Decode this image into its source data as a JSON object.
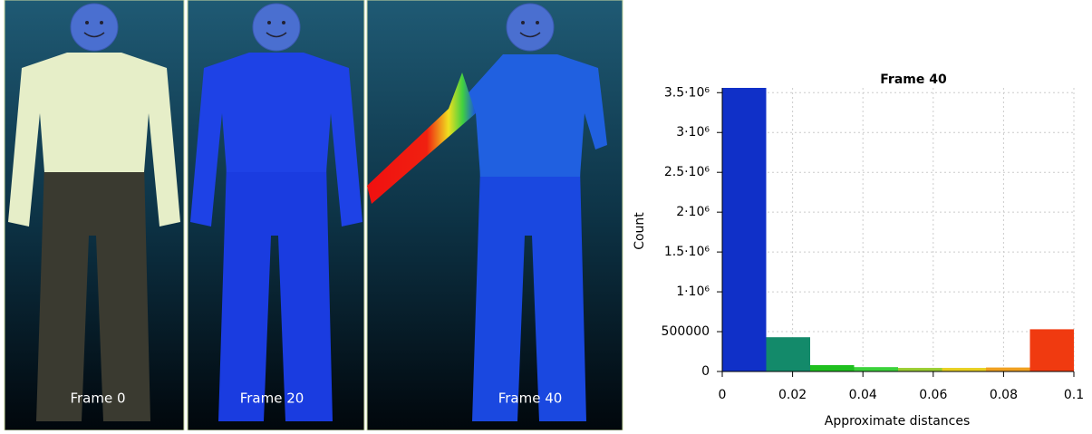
{
  "panels": [
    {
      "label": "Frame 0"
    },
    {
      "label": "Frame 20"
    },
    {
      "label": "Frame 40"
    }
  ],
  "chart_data": {
    "type": "histogram",
    "title": "Frame 40",
    "xlabel": "Approximate distances",
    "ylabel": "Count",
    "bins": [
      0,
      0.0125,
      0.025,
      0.0375,
      0.05,
      0.0625,
      0.075,
      0.0875,
      0.1
    ],
    "counts": [
      3560000,
      430000,
      80000,
      55000,
      45000,
      45000,
      50000,
      530000
    ],
    "colors": [
      "#1030c8",
      "#138a6a",
      "#1fc01f",
      "#3bd23b",
      "#9acd32",
      "#e8d020",
      "#f0a020",
      "#f03a10"
    ],
    "xlim": [
      0,
      0.1
    ],
    "ylim": [
      0,
      3560000
    ],
    "xticks": [
      0,
      0.02,
      0.04,
      0.06,
      0.08,
      0.1
    ],
    "yticks": [
      0,
      500000,
      {
        "value": 1000000,
        "label": "1·10⁶"
      },
      {
        "value": 1500000,
        "label": "1.5·10⁶"
      },
      {
        "value": 2000000,
        "label": "2·10⁶"
      },
      {
        "value": 2500000,
        "label": "2.5·10⁶"
      },
      {
        "value": 3000000,
        "label": "3·10⁶"
      },
      {
        "value": 3500000,
        "label": "3.5·10⁶"
      }
    ],
    "grid": true
  }
}
